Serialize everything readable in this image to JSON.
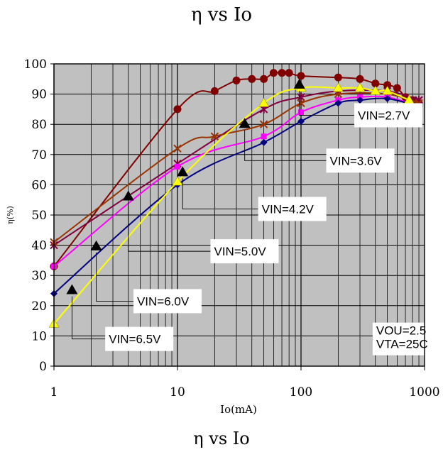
{
  "chart_data": {
    "type": "line",
    "title": "η vs Io",
    "xlabel": "Io(mA)",
    "ylabel": "η(%)",
    "xscale": "log",
    "xlim": [
      1,
      1000
    ],
    "ylim": [
      0,
      100
    ],
    "x_ticks": [
      "1",
      "10",
      "100",
      "1000"
    ],
    "y_ticks": [
      "0",
      "10",
      "20",
      "30",
      "40",
      "50",
      "60",
      "70",
      "80",
      "90",
      "100"
    ],
    "grid": true,
    "plot_background": "#c0c0c0",
    "series": [
      {
        "name": "VIN=2.7V",
        "color": "#800000",
        "marker": "circle",
        "x": [
          1,
          10,
          20,
          30,
          40,
          50,
          60,
          70,
          80,
          100,
          200,
          300,
          400,
          500,
          600,
          700,
          800,
          900
        ],
        "y": [
          33,
          85,
          91,
          94.5,
          95,
          95,
          97,
          97,
          97,
          96,
          95.5,
          95,
          93.5,
          93,
          92,
          89,
          88,
          87
        ]
      },
      {
        "name": "VIN=3.6V",
        "color": "#800040",
        "marker": "star",
        "x": [
          1,
          10,
          50,
          100,
          200,
          500,
          900
        ],
        "y": [
          40,
          67,
          85,
          89,
          91,
          91,
          88
        ]
      },
      {
        "name": "VIN=4.2V",
        "color": "#993300",
        "marker": "x",
        "x": [
          1,
          10,
          20,
          50,
          100,
          200,
          500,
          900
        ],
        "y": [
          41,
          72,
          76,
          80,
          87,
          90,
          90,
          87
        ]
      },
      {
        "name": "VIN=5.0V",
        "color": "#ff00ff",
        "marker": "square",
        "x": [
          1,
          10,
          50,
          100,
          200,
          300,
          500,
          900
        ],
        "y": [
          33,
          66,
          76,
          84,
          88,
          89,
          89,
          86
        ]
      },
      {
        "name": "VIN=6.0V",
        "color": "#000080",
        "marker": "diamond",
        "x": [
          1,
          10,
          50,
          100,
          200,
          300,
          500,
          900
        ],
        "y": [
          24,
          60,
          74,
          81,
          87,
          88,
          88.5,
          86
        ]
      },
      {
        "name": "VIN=6.5V",
        "color": "#ffff00",
        "marker": "triangle",
        "x": [
          1,
          10,
          50,
          100,
          200,
          300,
          400,
          500,
          750
        ],
        "y": [
          14,
          61,
          87,
          92,
          92,
          92,
          91,
          91,
          88
        ]
      }
    ],
    "annotations": [
      {
        "text": "VIN=2.7V",
        "x": 270,
        "y": 83,
        "arrow_x": 97,
        "arrow_y": 93
      },
      {
        "text": "VIN=3.6V",
        "x": 160,
        "y": 68,
        "arrow_x": 35,
        "arrow_y": 80
      },
      {
        "text": "VIN=4.2V",
        "x": 45,
        "y": 52,
        "arrow_x": 11,
        "arrow_y": 64
      },
      {
        "text": "VIN=5.0V",
        "x": 18.5,
        "y": 38,
        "arrow_x": 4,
        "arrow_y": 56
      },
      {
        "text": "VIN=6.0V",
        "x": 4.4,
        "y": 21.5,
        "arrow_x": 2.2,
        "arrow_y": 39.5
      },
      {
        "text": "VIN=6.5V",
        "x": 2.6,
        "y": 9,
        "arrow_x": 1.4,
        "arrow_y": 25
      },
      {
        "text": "VOU=2.5\nVTA=25C",
        "x": 380,
        "y": 9,
        "box": true
      }
    ],
    "bottom_caption": "η vs Io"
  }
}
